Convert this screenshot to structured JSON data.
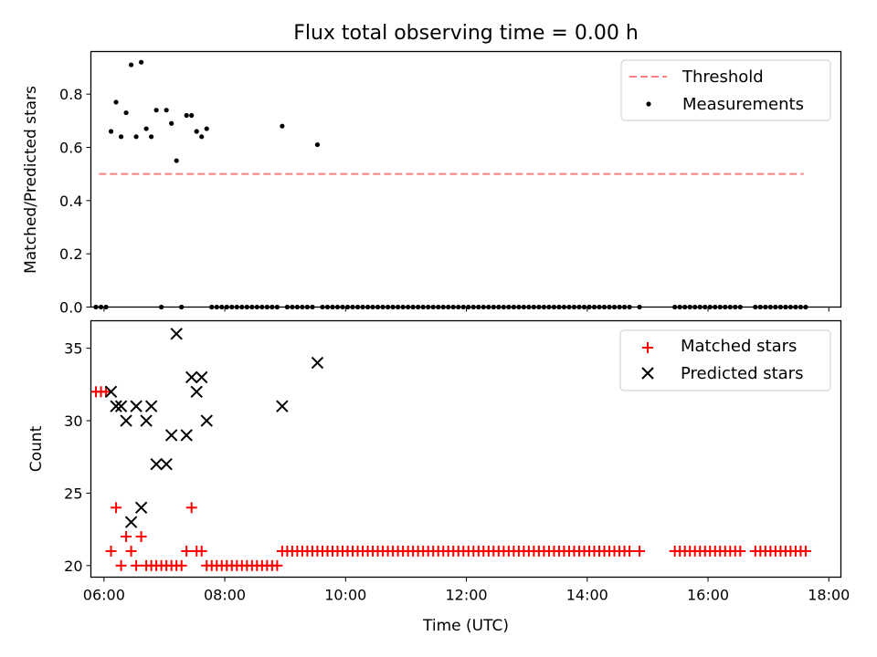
{
  "chart_data": [
    {
      "type": "scatter",
      "title": "Flux total observing time = 0.00 h",
      "xlabel": "",
      "ylabel": "Matched/Predicted stars",
      "xlim": [
        "05:47",
        "18:12"
      ],
      "ylim": [
        0,
        0.96
      ],
      "yticks": [
        "0.0",
        "0.2",
        "0.4",
        "0.6",
        "0.8"
      ],
      "grid": false,
      "legend_position": "top-right",
      "threshold": {
        "name": "Threshold",
        "value": 0.5,
        "x_range": [
          "05:55",
          "17:35"
        ],
        "color": "#ff7f7f",
        "style": "dashed"
      },
      "series": [
        {
          "name": "Measurements",
          "color": "#000000",
          "points": [
            [
              "06:07",
              0.66
            ],
            [
              "06:12",
              0.77
            ],
            [
              "06:17",
              0.64
            ],
            [
              "06:22",
              0.73
            ],
            [
              "06:27",
              0.91
            ],
            [
              "06:32",
              0.64
            ],
            [
              "06:37",
              0.92
            ],
            [
              "06:42",
              0.67
            ],
            [
              "06:47",
              0.64
            ],
            [
              "06:52",
              0.74
            ],
            [
              "07:02",
              0.74
            ],
            [
              "07:07",
              0.69
            ],
            [
              "07:12",
              0.55
            ],
            [
              "07:22",
              0.72
            ],
            [
              "07:27",
              0.72
            ],
            [
              "07:32",
              0.66
            ],
            [
              "07:37",
              0.64
            ],
            [
              "07:42",
              0.67
            ],
            [
              "08:57",
              0.68
            ],
            [
              "09:32",
              0.61
            ]
          ],
          "zero_times": [
            "05:52",
            "05:57",
            "06:02",
            "06:57",
            "07:17",
            [
              "07:47",
              "08:52",
              5
            ],
            [
              "09:02",
              "09:27",
              5
            ],
            [
              "09:37",
              "14:42",
              5
            ],
            "14:52",
            [
              "15:27",
              "16:27",
              5
            ],
            "16:32",
            [
              "16:47",
              "17:37",
              5
            ]
          ]
        }
      ]
    },
    {
      "type": "scatter",
      "title": "",
      "xlabel": "Time (UTC)",
      "ylabel": "Count",
      "xlim": [
        "05:47",
        "18:12"
      ],
      "ylim": [
        19.2,
        36.9
      ],
      "xticks": [
        "06:00",
        "08:00",
        "10:00",
        "12:00",
        "14:00",
        "16:00",
        "18:00"
      ],
      "yticks": [
        "20",
        "25",
        "30",
        "35"
      ],
      "grid": false,
      "legend_position": "top-right",
      "series": [
        {
          "name": "Matched stars",
          "color": "#ff0000",
          "marker": "plus",
          "points": [
            [
              "05:52",
              32
            ],
            [
              "05:57",
              32
            ],
            [
              "06:02",
              32
            ],
            [
              "06:07",
              21
            ],
            [
              "06:12",
              24
            ],
            [
              "06:17",
              20
            ],
            [
              "06:22",
              22
            ],
            [
              "06:27",
              21
            ],
            [
              "06:32",
              20
            ],
            [
              "06:37",
              22
            ],
            [
              "06:42",
              20
            ],
            [
              "06:47",
              20
            ],
            [
              "06:52",
              20
            ],
            [
              "06:57",
              20
            ],
            [
              "07:02",
              20
            ],
            [
              "07:07",
              20
            ],
            [
              "07:12",
              20
            ],
            [
              "07:17",
              20
            ],
            [
              "07:22",
              21
            ],
            [
              "07:27",
              24
            ],
            [
              "07:32",
              21
            ],
            [
              "07:37",
              21
            ],
            [
              "08:57",
              21
            ],
            [
              "09:32",
              21
            ],
            "14:52",
            "16:32"
          ],
          "runs": [
            [
              "07:42",
              "08:52",
              5,
              20
            ],
            [
              "09:02",
              "09:27",
              5,
              21
            ],
            [
              "09:37",
              "14:42",
              5,
              21
            ],
            [
              "15:27",
              "16:27",
              5,
              21
            ],
            [
              "16:47",
              "17:37",
              5,
              21
            ]
          ],
          "single_value_default": 21
        },
        {
          "name": "Predicted stars",
          "color": "#000000",
          "marker": "x",
          "points": [
            [
              "06:07",
              32
            ],
            [
              "06:12",
              31
            ],
            [
              "06:17",
              31
            ],
            [
              "06:22",
              30
            ],
            [
              "06:27",
              23
            ],
            [
              "06:32",
              31
            ],
            [
              "06:37",
              24
            ],
            [
              "06:42",
              30
            ],
            [
              "06:47",
              31
            ],
            [
              "06:52",
              27
            ],
            [
              "07:02",
              27
            ],
            [
              "07:07",
              29
            ],
            [
              "07:12",
              36
            ],
            [
              "07:22",
              29
            ],
            [
              "07:27",
              33
            ],
            [
              "07:32",
              32
            ],
            [
              "07:37",
              33
            ],
            [
              "07:42",
              30
            ],
            [
              "08:57",
              31
            ],
            [
              "09:32",
              34
            ]
          ]
        }
      ]
    }
  ]
}
